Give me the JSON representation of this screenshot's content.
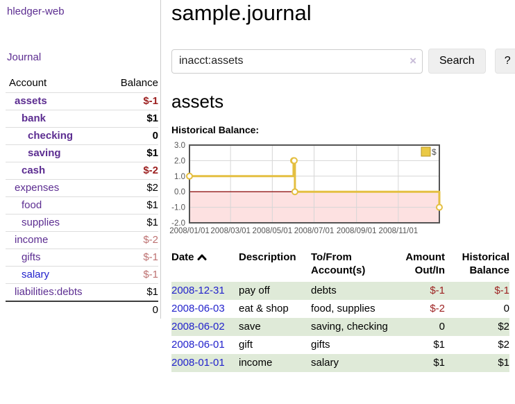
{
  "app": {
    "brand": "hledger-web",
    "nav_journal": "Journal"
  },
  "sidebar": {
    "header": {
      "account": "Account",
      "balance": "Balance"
    },
    "accounts": [
      {
        "name": "assets",
        "depth": 1,
        "bold": true,
        "balance": "$-1",
        "balance_style": "neg"
      },
      {
        "name": "bank",
        "depth": 2,
        "bold": true,
        "balance": "$1",
        "balance_style": "pos"
      },
      {
        "name": "checking",
        "depth": 3,
        "bold": true,
        "balance": "0",
        "balance_style": "pos"
      },
      {
        "name": "saving",
        "depth": 3,
        "bold": true,
        "balance": "$1",
        "balance_style": "pos"
      },
      {
        "name": "cash",
        "depth": 2,
        "bold": true,
        "balance": "$-2",
        "balance_style": "neg"
      },
      {
        "name": "expenses",
        "depth": 1,
        "bold": false,
        "balance": "$2",
        "balance_style": "pos"
      },
      {
        "name": "food",
        "depth": 2,
        "bold": false,
        "balance": "$1",
        "balance_style": "pos"
      },
      {
        "name": "supplies",
        "depth": 2,
        "bold": false,
        "balance": "$1",
        "balance_style": "pos"
      },
      {
        "name": "income",
        "depth": 1,
        "bold": false,
        "balance": "$-2",
        "balance_style": "neg-muted"
      },
      {
        "name": "gifts",
        "depth": 2,
        "bold": false,
        "balance": "$-1",
        "balance_style": "neg-muted"
      },
      {
        "name": "salary",
        "depth": 2,
        "bold": false,
        "link_style": "blue",
        "balance": "$-1",
        "balance_style": "neg-muted"
      },
      {
        "name": "liabilities:debts",
        "depth": 1,
        "bold": false,
        "balance": "$1",
        "balance_style": "pos"
      }
    ],
    "total": "0"
  },
  "header": {
    "title": "sample.journal"
  },
  "search": {
    "value": "inacct:assets",
    "clear_label": "×",
    "button": "Search",
    "help": "?"
  },
  "account_page": {
    "title": "assets",
    "chart_label": "Historical Balance:"
  },
  "chart_data": {
    "type": "line",
    "step": true,
    "title": "Historical Balance:",
    "series": [
      {
        "name": "$",
        "color": "#e4bf41",
        "points": [
          {
            "x": "2008-01-01",
            "y": 1
          },
          {
            "x": "2008-06-01",
            "y": 2
          },
          {
            "x": "2008-06-02",
            "y": 2
          },
          {
            "x": "2008-06-03",
            "y": 0
          },
          {
            "x": "2008-12-31",
            "y": -1
          }
        ]
      }
    ],
    "x_range": [
      "2008-01-01",
      "2008-12-31"
    ],
    "x_ticks": [
      "2008/01/01",
      "2008/03/01",
      "2008/05/01",
      "2008/07/01",
      "2008/09/01",
      "2008/11/01"
    ],
    "y_ticks": [
      "3.0",
      "2.0",
      "1.0",
      "0.0",
      "-1.0",
      "-2.0"
    ],
    "ylim": [
      -2,
      3
    ],
    "grid": true,
    "legend": {
      "position": "top-right",
      "label": "$",
      "swatch_color": "#eac945",
      "swatch_border": "#b59427"
    },
    "colors": {
      "negative_region": "#fde1e1",
      "zero_line": "#911616",
      "grid": "#d6d6d6",
      "border": "#545454",
      "axis_text": "#545454",
      "marker_fill": "#ffffff"
    }
  },
  "register": {
    "columns": [
      "Date",
      "Description",
      "To/From Account(s)",
      "Amount Out/In",
      "Historical Balance"
    ],
    "rows": [
      {
        "date": "2008-12-31",
        "description": "pay off",
        "accounts": "debts",
        "amount": "$-1",
        "amount_style": "neg",
        "balance": "$-1",
        "balance_style": "neg"
      },
      {
        "date": "2008-06-03",
        "description": "eat & shop",
        "accounts": "food, supplies",
        "amount": "$-2",
        "amount_style": "neg",
        "balance": "0",
        "balance_style": "pos"
      },
      {
        "date": "2008-06-02",
        "description": "save",
        "accounts": "saving, checking",
        "amount": "0",
        "amount_style": "pos",
        "balance": "$2",
        "balance_style": "pos"
      },
      {
        "date": "2008-06-01",
        "description": "gift",
        "accounts": "gifts",
        "amount": "$1",
        "amount_style": "pos",
        "balance": "$2",
        "balance_style": "pos"
      },
      {
        "date": "2008-01-01",
        "description": "income",
        "accounts": "salary",
        "amount": "$1",
        "amount_style": "pos",
        "balance": "$1",
        "balance_style": "pos"
      }
    ]
  }
}
